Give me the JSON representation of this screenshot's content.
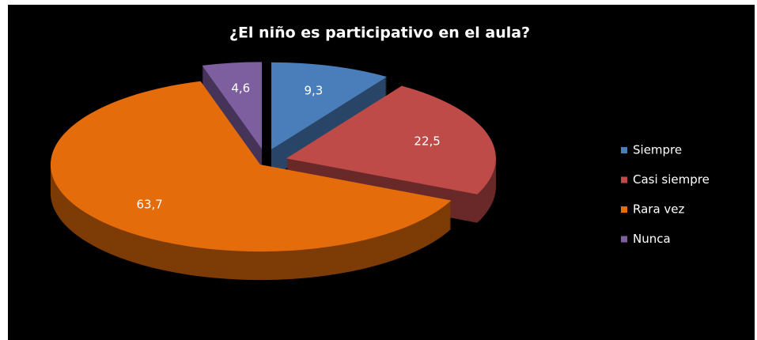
{
  "chart_data": {
    "type": "pie",
    "title": "¿El niño es participativo en el aula?",
    "categories": [
      "Siempre",
      "Casi siempre",
      "Rara vez",
      "Nunca"
    ],
    "values": [
      9.3,
      22.5,
      63.7,
      4.6
    ],
    "value_labels": [
      "9,3",
      "22,5",
      "63,7",
      "4,6"
    ],
    "colors": [
      "#4a7ebb",
      "#be4b48",
      "#e46c0a",
      "#7d5fa0"
    ],
    "legend": "right"
  }
}
